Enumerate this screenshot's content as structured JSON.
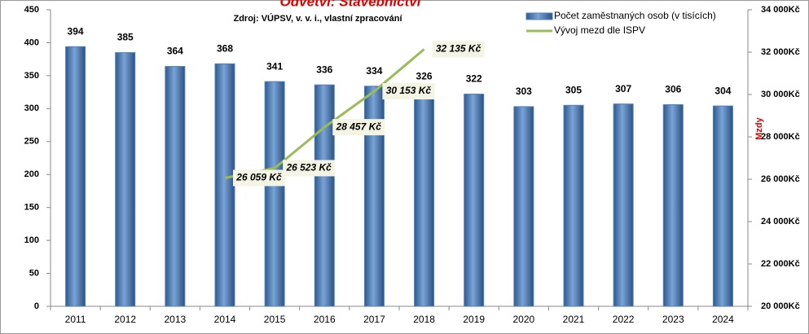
{
  "chart_data": {
    "type": "bar_line",
    "title": "Odvětví: Stavebnictví",
    "subtitle": "Zdroj: VÚPSV, v. v. i., vlastní zpracování",
    "y2_label": "Mzdy",
    "categories": [
      "2011",
      "2012",
      "2013",
      "2014",
      "2015",
      "2016",
      "2017",
      "2018",
      "2019",
      "2020",
      "2021",
      "2022",
      "2023",
      "2024"
    ],
    "series": [
      {
        "name": "Počet zaměstnaných osob (v tisících)",
        "type": "bar",
        "color": "#4f81bd",
        "values": [
          394,
          385,
          364,
          368,
          341,
          336,
          334,
          326,
          322,
          303,
          305,
          307,
          306,
          304
        ]
      },
      {
        "name": "Vývoj mezd dle ISPV",
        "type": "line",
        "color": "#9bbb59",
        "axis": "y2",
        "values": [
          null,
          null,
          null,
          26059,
          26523,
          28457,
          30153,
          32135,
          null,
          null,
          null,
          null,
          null,
          null
        ],
        "value_labels": [
          null,
          null,
          null,
          "26 059 Kč",
          "26 523 Kč",
          "28 457 Kč",
          "30 153 Kč",
          "32 135 Kč",
          null,
          null,
          null,
          null,
          null,
          null
        ]
      }
    ],
    "ylim": [
      0,
      450
    ],
    "yticks": [
      0,
      50,
      100,
      150,
      200,
      250,
      300,
      350,
      400,
      450
    ],
    "y2lim": [
      20000,
      34000
    ],
    "y2ticks": [
      {
        "value": 20000,
        "label": "20 000Kč"
      },
      {
        "value": 22000,
        "label": "22 000Kč"
      },
      {
        "value": 24000,
        "label": "24 000Kč"
      },
      {
        "value": 26000,
        "label": "26 000Kč"
      },
      {
        "value": 28000,
        "label": "28 000Kč"
      },
      {
        "value": 30000,
        "label": "30 000Kč"
      },
      {
        "value": 32000,
        "label": "32 000Kč"
      },
      {
        "value": 34000,
        "label": "34 000Kč"
      }
    ],
    "grid": false,
    "legend": "top-right"
  }
}
